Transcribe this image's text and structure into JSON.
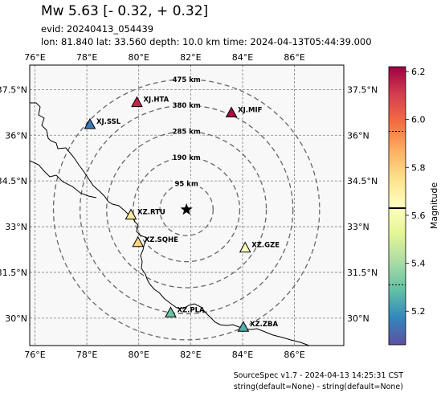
{
  "header": {
    "title": "Mw 5.63 [- 0.32, + 0.32]",
    "evid": "evid: 20240413_054439",
    "info": "lon: 81.840 lat: 33.560 depth: 10.0 km time: 2024-04-13T05:44:39.000"
  },
  "map": {
    "lon_ticks": [
      "76°E",
      "78°E",
      "80°E",
      "82°E",
      "84°E",
      "86°E"
    ],
    "lat_ticks": [
      "37.5°N",
      "36°N",
      "34.5°N",
      "33°N",
      "31.5°N",
      "30°N"
    ],
    "lon_range": [
      75.8,
      87.9
    ],
    "lat_range": [
      29.1,
      38.3
    ],
    "epicenter": {
      "lon": 81.84,
      "lat": 33.56,
      "marker": "star-icon",
      "color": "#000000"
    },
    "rings": [
      {
        "radius_km": 95,
        "label": "95 km"
      },
      {
        "radius_km": 190,
        "label": "190 km"
      },
      {
        "radius_km": 285,
        "label": "285 km"
      },
      {
        "radius_km": 380,
        "label": "380 km"
      },
      {
        "radius_km": 475,
        "label": "475 km"
      }
    ],
    "stations": [
      {
        "code": "XJ.HTA",
        "lon": 79.93,
        "lat": 37.07,
        "magnitude": 6.15
      },
      {
        "code": "XJ.MIF",
        "lon": 83.57,
        "lat": 36.73,
        "magnitude": 6.2
      },
      {
        "code": "XJ.SSL",
        "lon": 78.12,
        "lat": 36.35,
        "magnitude": 5.15
      },
      {
        "code": "XZ.RTU",
        "lon": 79.7,
        "lat": 33.38,
        "magnitude": 5.72
      },
      {
        "code": "XZ.SQHE",
        "lon": 79.97,
        "lat": 32.48,
        "magnitude": 5.78
      },
      {
        "code": "XZ.GZE",
        "lon": 84.1,
        "lat": 32.3,
        "magnitude": 5.65
      },
      {
        "code": "XZ.PLA",
        "lon": 81.23,
        "lat": 30.17,
        "magnitude": 5.3
      },
      {
        "code": "XZ.ZBA",
        "lon": 84.03,
        "lat": 29.7,
        "magnitude": 5.25
      }
    ]
  },
  "colorbar": {
    "label": "Magnitude",
    "min": 5.06,
    "max": 6.22,
    "ticks": [
      "5.2",
      "5.4",
      "5.6",
      "5.8",
      "6.0",
      "6.2"
    ],
    "tick_values": [
      5.2,
      5.4,
      5.6,
      5.8,
      6.0,
      6.2
    ],
    "mean": 5.63,
    "lower": 5.31,
    "upper": 5.95
  },
  "footer": {
    "line1": "SourceSpec v1.7 - 2024-04-13 14:25:31 CST",
    "line2": "string(default=None) - string(default=None)"
  }
}
